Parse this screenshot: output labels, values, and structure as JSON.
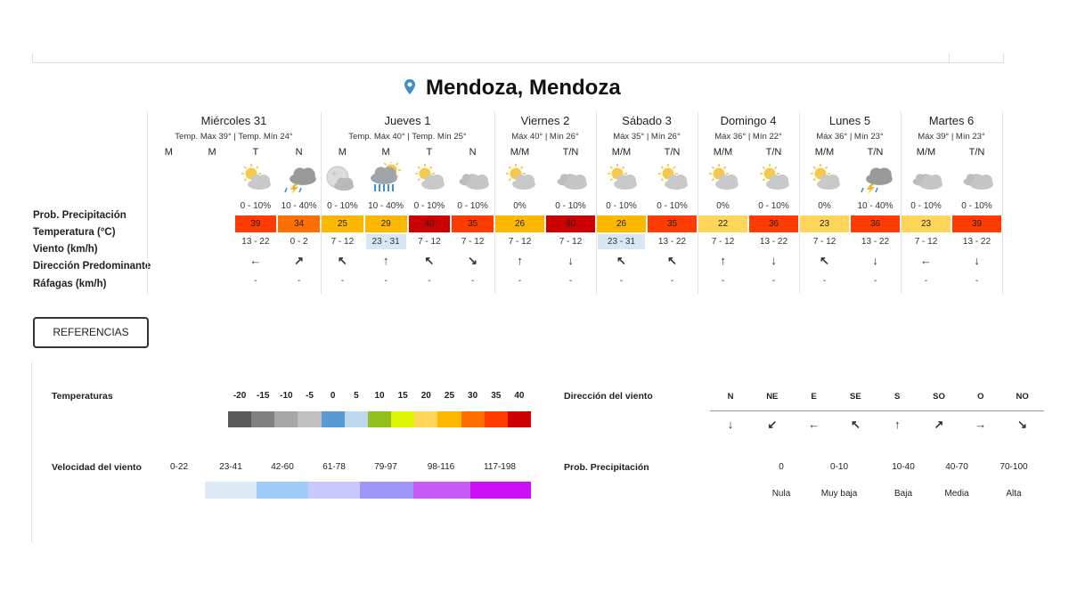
{
  "header": {
    "title": "Mendoza, Mendoza"
  },
  "row_labels": [
    "Prob. Precipitación",
    "Temperatura (°C)",
    "Viento (km/h)",
    "Dirección Predominante",
    "Ráfagas (km/h)"
  ],
  "days": [
    {
      "name": "Miércoles 31",
      "subtitle": "Temp. Máx 39° | Temp. Mín 24°",
      "periods": [
        {
          "label": "M"
        },
        {
          "label": "M"
        },
        {
          "label": "T",
          "icon": "sun-cloud",
          "precip": "0 - 10%",
          "temp": 39,
          "wind": "13 - 22",
          "dir": "←",
          "gust": "-"
        },
        {
          "label": "N",
          "icon": "storm",
          "precip": "10 - 40%",
          "temp": 34,
          "wind": "0 - 2",
          "dir": "↗",
          "gust": "-"
        }
      ]
    },
    {
      "name": "Jueves 1",
      "subtitle": "Temp. Máx 40° | Temp. Mín 25°",
      "periods": [
        {
          "label": "M",
          "icon": "moon-cloud",
          "precip": "0 - 10%",
          "temp": 25,
          "wind": "7 - 12",
          "dir": "↖",
          "gust": "-"
        },
        {
          "label": "M",
          "icon": "rain",
          "precip": "10 - 40%",
          "temp": 29,
          "wind": "23 - 31",
          "wind_color": "#d9e7f5",
          "dir": "↑",
          "gust": "-"
        },
        {
          "label": "T",
          "icon": "sun-cloud",
          "precip": "0 - 10%",
          "temp": 40,
          "wind": "7 - 12",
          "dir": "↖",
          "gust": "-"
        },
        {
          "label": "N",
          "icon": "cloud",
          "precip": "0 - 10%",
          "temp": 35,
          "wind": "7 - 12",
          "dir": "↘",
          "gust": "-"
        }
      ]
    },
    {
      "name": "Viernes 2",
      "subtitle": "Máx 40° | Mín 26°",
      "periods": [
        {
          "label": "M/M",
          "icon": "sun-cloud",
          "precip": "0%",
          "temp": 26,
          "wind": "7 - 12",
          "dir": "↑",
          "gust": "-"
        },
        {
          "label": "T/N",
          "icon": "cloud",
          "precip": "0 - 10%",
          "temp": 40,
          "wind": "7 - 12",
          "dir": "↓",
          "gust": "-"
        }
      ]
    },
    {
      "name": "Sábado 3",
      "subtitle": "Máx 35° | Mín 26°",
      "periods": [
        {
          "label": "M/M",
          "icon": "sun-cloud",
          "precip": "0 - 10%",
          "temp": 26,
          "wind": "23 - 31",
          "wind_color": "#d9e7f5",
          "dir": "↖",
          "gust": "-"
        },
        {
          "label": "T/N",
          "icon": "sun-cloud",
          "precip": "0 - 10%",
          "temp": 35,
          "wind": "13 - 22",
          "dir": "↖",
          "gust": "-"
        }
      ]
    },
    {
      "name": "Domingo 4",
      "subtitle": "Máx 36° | Mín 22°",
      "periods": [
        {
          "label": "M/M",
          "icon": "sun-cloud",
          "precip": "0%",
          "temp": 22,
          "wind": "7 - 12",
          "dir": "↑",
          "gust": "-"
        },
        {
          "label": "T/N",
          "icon": "sun-cloud",
          "precip": "0 - 10%",
          "temp": 36,
          "wind": "13 - 22",
          "dir": "↓",
          "gust": "-"
        }
      ]
    },
    {
      "name": "Lunes 5",
      "subtitle": "Máx 36° | Mín 23°",
      "periods": [
        {
          "label": "M/M",
          "icon": "sun-cloud",
          "precip": "0%",
          "temp": 23,
          "wind": "7 - 12",
          "dir": "↖",
          "gust": "-"
        },
        {
          "label": "T/N",
          "icon": "storm",
          "precip": "10 - 40%",
          "temp": 36,
          "wind": "13 - 22",
          "dir": "↓",
          "gust": "-"
        }
      ]
    },
    {
      "name": "Martes 6",
      "subtitle": "Máx 39° | Mín 23°",
      "periods": [
        {
          "label": "M/M",
          "icon": "cloud",
          "precip": "0 - 10%",
          "temp": 23,
          "wind": "7 - 12",
          "dir": "←",
          "gust": "-"
        },
        {
          "label": "T/N",
          "icon": "cloud",
          "precip": "0 - 10%",
          "temp": 39,
          "wind": "13 - 22",
          "dir": "↓",
          "gust": "-"
        }
      ]
    }
  ],
  "references": {
    "button": "REFERENCIAS",
    "temperature": {
      "label": "Temperaturas",
      "ticks": [
        -20,
        -15,
        -10,
        -5,
        0,
        5,
        10,
        15,
        20,
        25,
        30,
        35,
        40
      ],
      "colors": [
        "#595959",
        "#808080",
        "#a6a6a6",
        "#bfbfbf",
        "#5b9bd5",
        "#bdd7ee",
        "#92c01f",
        "#dcf500",
        "#ffd55a",
        "#ffb800",
        "#ff7000",
        "#ff3b00",
        "#cc0000"
      ]
    },
    "wind_speed": {
      "label": "Velocidad del viento",
      "ranges": [
        "0-22",
        "23-41",
        "42-60",
        "61-78",
        "79-97",
        "98-116",
        "117-198"
      ],
      "colors": [
        "#dde9f5",
        "#9ecbf7",
        "#c9c9fb",
        "#9d95f7",
        "#c65cf5",
        "#cc0ff5"
      ]
    },
    "wind_direction": {
      "label": "Dirección del viento",
      "directions": [
        "N",
        "NE",
        "E",
        "SE",
        "S",
        "SO",
        "O",
        "NO"
      ],
      "arrows": [
        "↓",
        "↙",
        "←",
        "↖",
        "↑",
        "↗",
        "→",
        "↘"
      ]
    },
    "precipitation": {
      "label": "Prob. Precipitación",
      "ranges": [
        "0",
        "0-10",
        "10-40",
        "40-70",
        "70-100"
      ],
      "levels": [
        "Nula",
        "Muy baja",
        "Baja",
        "Media",
        "Alta"
      ]
    }
  }
}
